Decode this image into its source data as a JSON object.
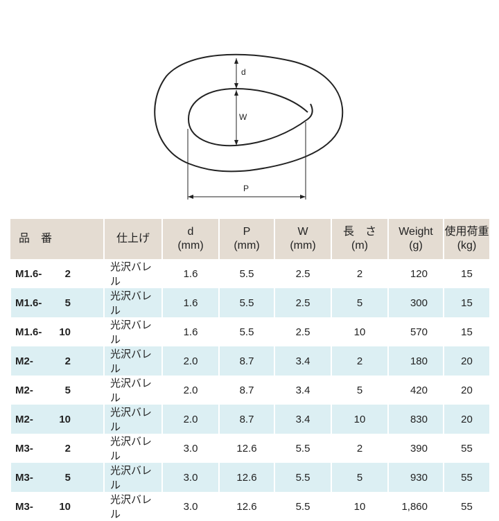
{
  "diagram": {
    "labels": {
      "d": "d",
      "w": "W",
      "p": "P"
    }
  },
  "table": {
    "headers": [
      {
        "line1": "品　番",
        "line2": ""
      },
      {
        "line1": "仕上げ",
        "line2": ""
      },
      {
        "line1": "d",
        "line2": "(mm)"
      },
      {
        "line1": "P",
        "line2": "(mm)"
      },
      {
        "line1": "W",
        "line2": "(mm)"
      },
      {
        "line1": "長　さ",
        "line2": "(m)"
      },
      {
        "line1": "Weight",
        "line2": "(g)"
      },
      {
        "line1": "使用荷重",
        "line2": "(kg)"
      }
    ],
    "rows": [
      {
        "code_a": "M1.6-",
        "code_b": "2",
        "finish": "光沢バレル",
        "d": "1.6",
        "p": "5.5",
        "w": "2.5",
        "length": "2",
        "weight": "120",
        "load": "15"
      },
      {
        "code_a": "M1.6-",
        "code_b": "5",
        "finish": "光沢バレル",
        "d": "1.6",
        "p": "5.5",
        "w": "2.5",
        "length": "5",
        "weight": "300",
        "load": "15"
      },
      {
        "code_a": "M1.6-",
        "code_b": "10",
        "finish": "光沢バレル",
        "d": "1.6",
        "p": "5.5",
        "w": "2.5",
        "length": "10",
        "weight": "570",
        "load": "15"
      },
      {
        "code_a": "M2-",
        "code_b": "2",
        "finish": "光沢バレル",
        "d": "2.0",
        "p": "8.7",
        "w": "3.4",
        "length": "2",
        "weight": "180",
        "load": "20"
      },
      {
        "code_a": "M2-",
        "code_b": "5",
        "finish": "光沢バレル",
        "d": "2.0",
        "p": "8.7",
        "w": "3.4",
        "length": "5",
        "weight": "420",
        "load": "20"
      },
      {
        "code_a": "M2-",
        "code_b": "10",
        "finish": "光沢バレル",
        "d": "2.0",
        "p": "8.7",
        "w": "3.4",
        "length": "10",
        "weight": "830",
        "load": "20"
      },
      {
        "code_a": "M3-",
        "code_b": "2",
        "finish": "光沢バレル",
        "d": "3.0",
        "p": "12.6",
        "w": "5.5",
        "length": "2",
        "weight": "390",
        "load": "55"
      },
      {
        "code_a": "M3-",
        "code_b": "5",
        "finish": "光沢バレル",
        "d": "3.0",
        "p": "12.6",
        "w": "5.5",
        "length": "5",
        "weight": "930",
        "load": "55"
      },
      {
        "code_a": "M3-",
        "code_b": "10",
        "finish": "光沢バレル",
        "d": "3.0",
        "p": "12.6",
        "w": "5.5",
        "length": "10",
        "weight": "1,860",
        "load": "55"
      }
    ]
  }
}
